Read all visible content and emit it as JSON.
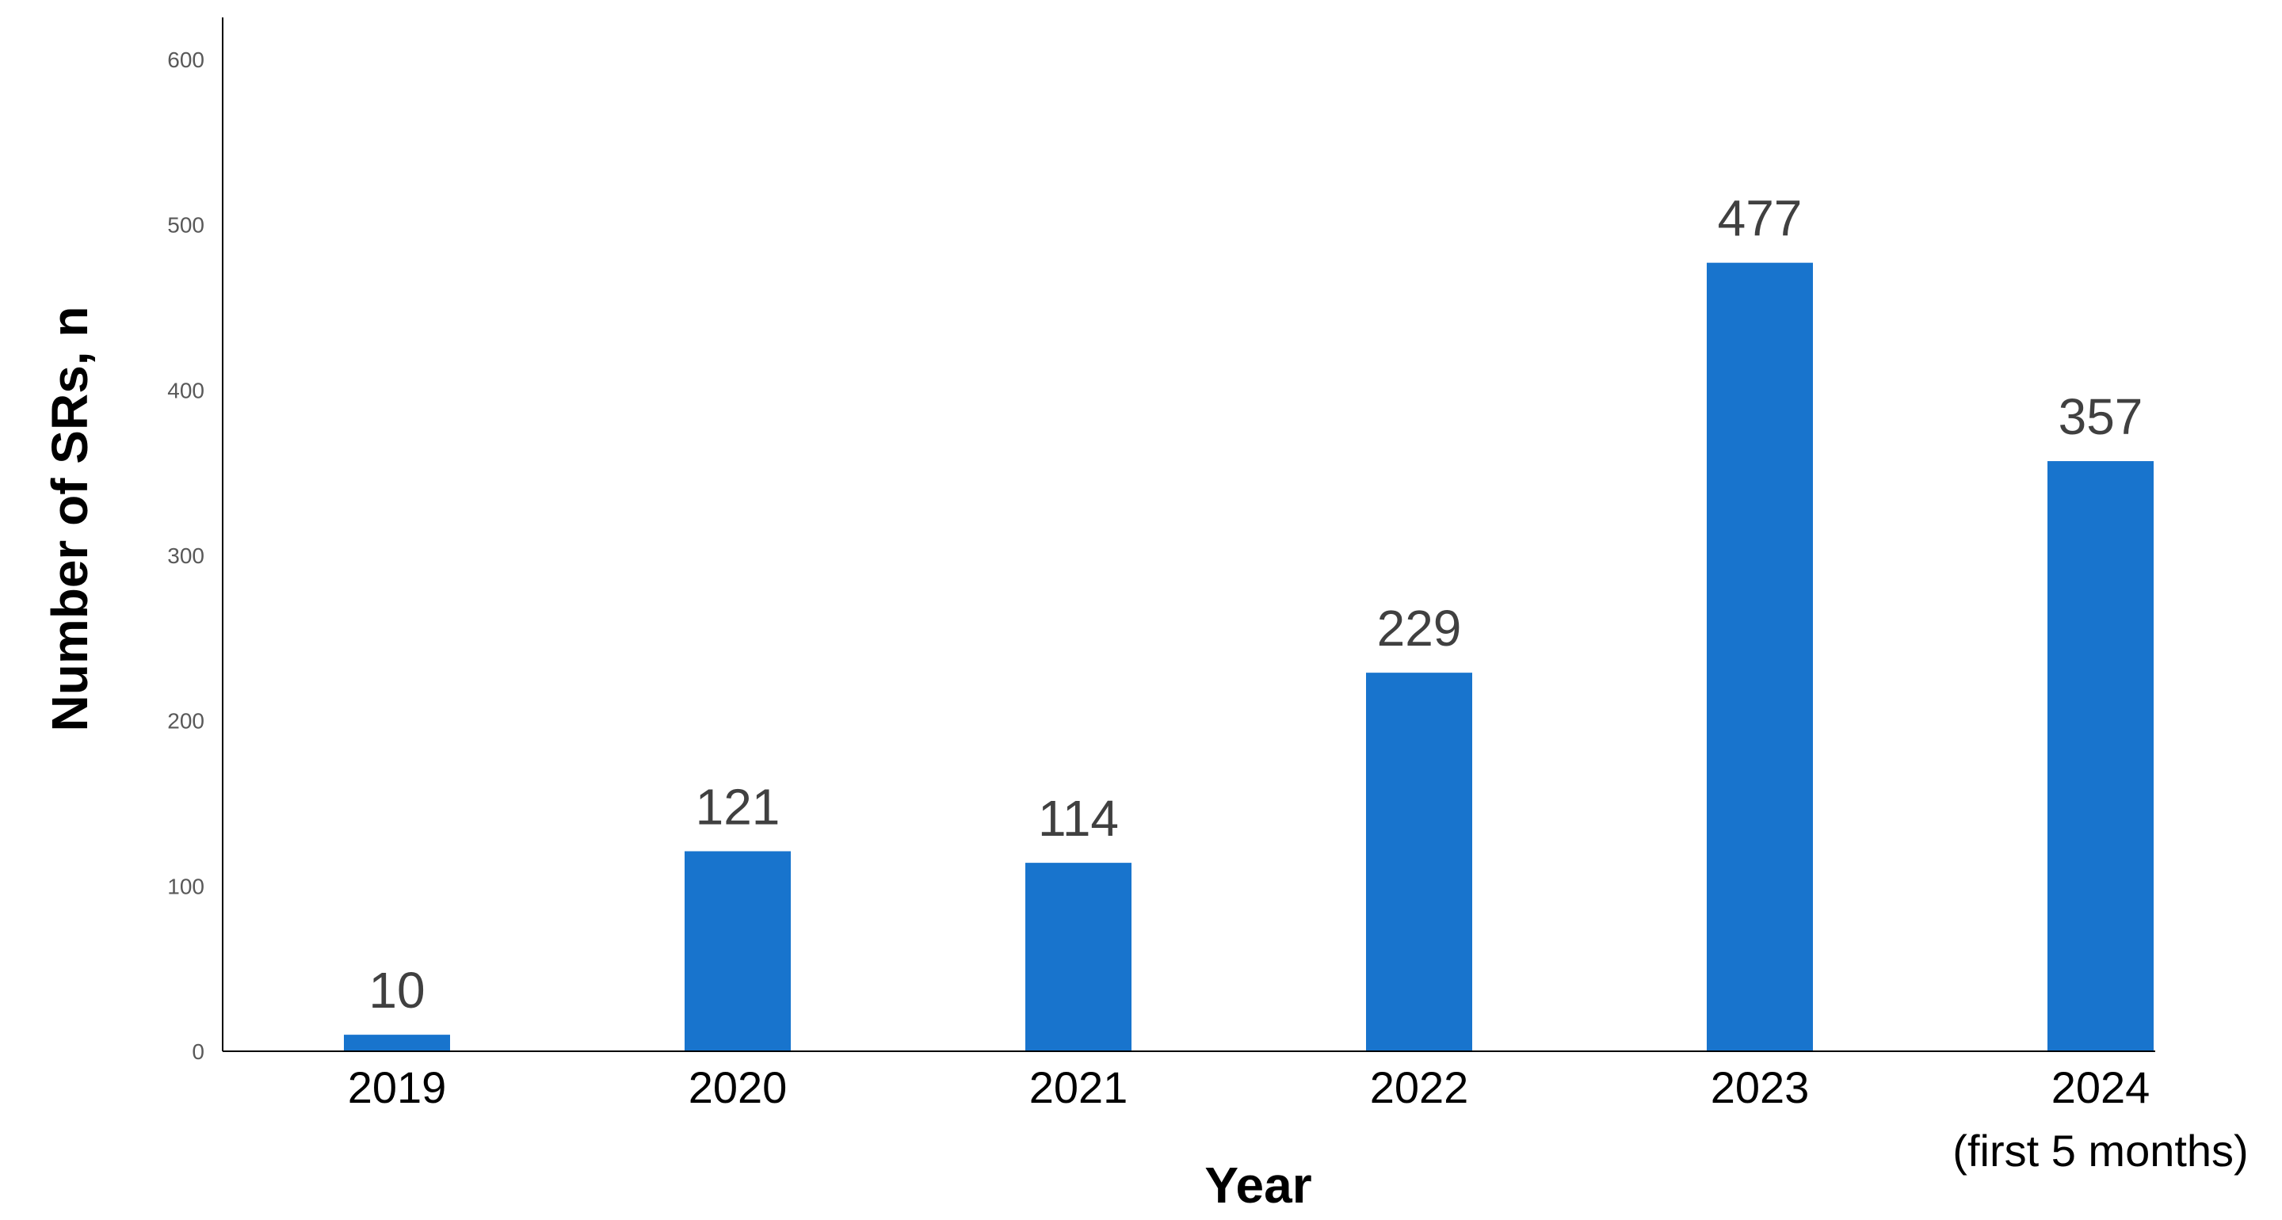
{
  "chart_data": {
    "type": "bar",
    "categories": [
      "2019",
      "2020",
      "2021",
      "2022",
      "2023",
      "2024\n(first 5 months)"
    ],
    "values": [
      10,
      121,
      114,
      229,
      477,
      357
    ],
    "data_labels": [
      "10",
      "121",
      "114",
      "229",
      "477",
      "357"
    ],
    "xlabel": "Year",
    "ylabel": "Number of SRs, n",
    "ylim": [
      0,
      600
    ],
    "yticks": [
      0,
      100,
      200,
      300,
      400,
      500,
      600
    ],
    "grid": false,
    "bar_color": "#1874CD",
    "axis_color": "#000000"
  }
}
